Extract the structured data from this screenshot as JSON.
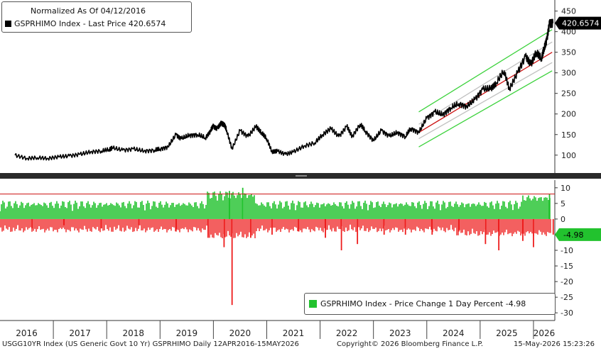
{
  "legend_top": {
    "line1": "Normalized As Of 04/12/2016",
    "line2": "GSPRHIMO Index - Last Price 420.6574"
  },
  "legend_bottom": {
    "text": "GSPRHIMO Index - Price Change 1 Day Percent -4.98"
  },
  "footer": {
    "left": "USGG10YR Index (US Generic Govt 10 Yr) GSPRHIMO Daily 12APR2016-15MAY2026",
    "middle": "Copyright© 2026 Bloomberg Finance L.P.",
    "right": "15-May-2026 15:23:26"
  },
  "colors": {
    "price_line": "#000000",
    "channel_outer": "#3cd23c",
    "channel_mid": "#cc1111",
    "channel_inner": "#c0c0c0",
    "bar_positive": "#22c22e",
    "bar_negative": "#ee1c1c",
    "last_price_tag": "#000000",
    "last_change_tag": "#22c22e",
    "threshold_line": "#cc1111"
  },
  "chart_data": [
    {
      "type": "line",
      "series": [
        {
          "name": "GSPRHIMO Index - Last Price",
          "x": [
            2016.28,
            2016.5,
            2016.7,
            2016.9,
            2017.1,
            2017.3,
            2017.5,
            2017.7,
            2017.9,
            2018.05,
            2018.1,
            2018.3,
            2018.5,
            2018.7,
            2018.9,
            2019.0,
            2019.15,
            2019.3,
            2019.4,
            2019.55,
            2019.7,
            2019.85,
            2019.95,
            2020.0,
            2020.08,
            2020.15,
            2020.2,
            2020.25,
            2020.35,
            2020.5,
            2020.65,
            2020.8,
            2020.9,
            2021.0,
            2021.1,
            2021.2,
            2021.35,
            2021.5,
            2021.7,
            2021.9,
            2022.05,
            2022.2,
            2022.35,
            2022.5,
            2022.6,
            2022.75,
            2022.85,
            2023.0,
            2023.15,
            2023.3,
            2023.45,
            2023.6,
            2023.7,
            2023.85,
            2024.0,
            2024.15,
            2024.3,
            2024.45,
            2024.6,
            2024.75,
            2024.9,
            2025.05,
            2025.2,
            2025.3,
            2025.45,
            2025.55,
            2025.7,
            2025.85,
            2025.95,
            2026.05,
            2026.15,
            2026.2,
            2026.25,
            2026.3,
            2026.37
          ],
          "y": [
            100,
            92,
            94,
            92,
            96,
            98,
            102,
            108,
            110,
            114,
            118,
            112,
            115,
            110,
            112,
            115,
            120,
            150,
            140,
            148,
            150,
            142,
            160,
            170,
            165,
            178,
            175,
            160,
            115,
            160,
            145,
            170,
            155,
            140,
            108,
            110,
            102,
            108,
            122,
            130,
            150,
            165,
            145,
            170,
            145,
            175,
            158,
            135,
            160,
            146,
            155,
            145,
            165,
            155,
            190,
            205,
            198,
            215,
            225,
            218,
            235,
            260,
            262,
            275,
            305,
            260,
            300,
            340,
            320,
            350,
            335,
            360,
            380,
            420,
            420.6574
          ]
        }
      ],
      "xlim": [
        2016.0,
        2026.4
      ],
      "ylim": [
        60,
        470
      ],
      "y_ticks": [
        100,
        150,
        200,
        250,
        300,
        350,
        400,
        450
      ],
      "x_tick_labels": [
        "2016",
        "2017",
        "2018",
        "2019",
        "2020",
        "2021",
        "2022",
        "2023",
        "2024",
        "2025",
        "2026"
      ],
      "channel": {
        "x_range": [
          2023.85,
          2026.35
        ],
        "outer_upper": [
          205,
          405
        ],
        "inner_upper": [
          175,
          375
        ],
        "mid": [
          155,
          350
        ],
        "inner_lower": [
          140,
          325
        ],
        "outer_lower": [
          120,
          305
        ]
      },
      "last_value_label": "420.6574"
    },
    {
      "type": "bar",
      "series": [
        {
          "name": "GSPRHIMO Index - Price Change 1 Day Percent",
          "x": [
            2016.6,
            2017.2,
            2017.9,
            2018.6,
            2019.3,
            2019.9,
            2020.2,
            2020.3,
            2020.35,
            2020.55,
            2020.7,
            2021.1,
            2021.6,
            2022.1,
            2022.4,
            2022.7,
            2023.2,
            2023.6,
            2024.1,
            2024.6,
            2025.1,
            2025.35,
            2025.8,
            2026.0,
            2026.3,
            2026.37
          ],
          "y": [
            -3,
            -2,
            -3,
            -2,
            -4,
            -6,
            -9,
            9,
            -27.5,
            10,
            -6,
            -5,
            -4,
            -6,
            -10,
            -8,
            -5,
            -5,
            -5,
            -4,
            -8,
            -10,
            -7,
            -9,
            8,
            -4.98
          ]
        }
      ],
      "ylim": [
        -32,
        12
      ],
      "y_ticks": [
        10,
        5,
        0,
        -5,
        -10,
        -15,
        -20,
        -25,
        -30
      ],
      "threshold": 8,
      "last_value_label": "-4.98"
    }
  ]
}
